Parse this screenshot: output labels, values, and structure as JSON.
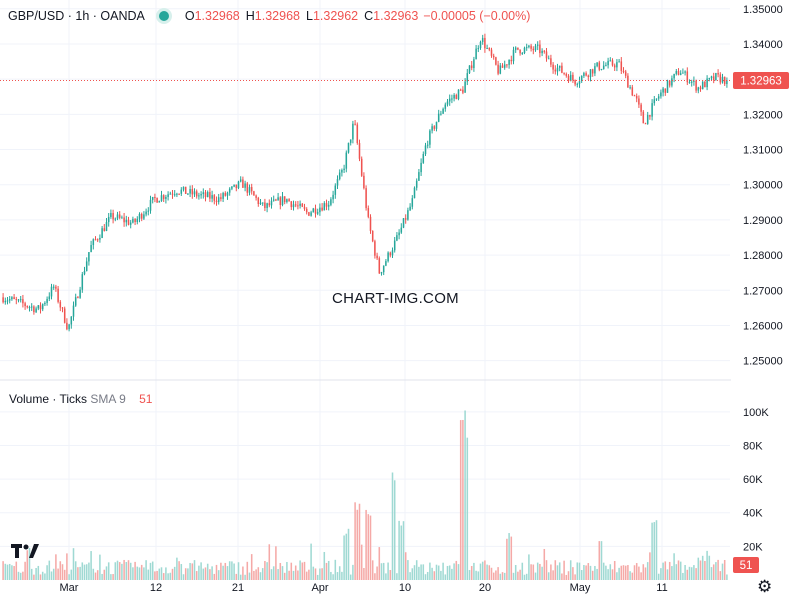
{
  "header": {
    "symbol": "GBP/USD · 1h · OANDA",
    "open_label": "O",
    "open": "1.32968",
    "high_label": "H",
    "high": "1.32968",
    "low_label": "L",
    "low": "1.32962",
    "close_label": "C",
    "close": "1.32963",
    "change": "−0.00005 (−0.00%)"
  },
  "volume_header": {
    "title": "Volume",
    "sep": "·",
    "subtitle": "Ticks",
    "indicator": "SMA 9",
    "value": "51"
  },
  "watermark": "CHART-IMG.COM",
  "last_price_label": "1.32963",
  "last_volume_label": "51",
  "logo_text": "17",
  "settings_icon": "gear-icon",
  "colors": {
    "up": "#26a69a",
    "down": "#ef5350",
    "up_volume": "#9fd9d3",
    "down_volume": "#f5a9a7"
  },
  "chart_data": [
    {
      "type": "candlestick",
      "title": "GBP/USD · 1h · OANDA",
      "ylim": [
        1.2445,
        1.3525
      ],
      "y_ticks": [
        "1.35000",
        "1.34000",
        "1.33000",
        "1.32000",
        "1.31000",
        "1.30000",
        "1.29000",
        "1.28000",
        "1.27000",
        "1.26000",
        "1.25000"
      ],
      "x_ticks": [
        "Mar",
        "12",
        "21",
        "Apr",
        "10",
        "20",
        "May",
        "11"
      ],
      "last_price": 1.32963,
      "path_waypoints": [
        {
          "t": 0,
          "p": 1.268
        },
        {
          "t": 0.05,
          "p": 1.2645
        },
        {
          "t": 0.07,
          "p": 1.271
        },
        {
          "t": 0.09,
          "p": 1.259
        },
        {
          "t": 0.12,
          "p": 1.282
        },
        {
          "t": 0.15,
          "p": 1.291
        },
        {
          "t": 0.18,
          "p": 1.289
        },
        {
          "t": 0.21,
          "p": 1.296
        },
        {
          "t": 0.24,
          "p": 1.2985
        },
        {
          "t": 0.27,
          "p": 1.297
        },
        {
          "t": 0.3,
          "p": 1.296
        },
        {
          "t": 0.33,
          "p": 1.3005
        },
        {
          "t": 0.36,
          "p": 1.2935
        },
        {
          "t": 0.39,
          "p": 1.296
        },
        {
          "t": 0.42,
          "p": 1.292
        },
        {
          "t": 0.45,
          "p": 1.295
        },
        {
          "t": 0.47,
          "p": 1.3045
        },
        {
          "t": 0.485,
          "p": 1.318
        },
        {
          "t": 0.505,
          "p": 1.289
        },
        {
          "t": 0.52,
          "p": 1.275
        },
        {
          "t": 0.545,
          "p": 1.285
        },
        {
          "t": 0.565,
          "p": 1.295
        },
        {
          "t": 0.585,
          "p": 1.312
        },
        {
          "t": 0.61,
          "p": 1.323
        },
        {
          "t": 0.635,
          "p": 1.327
        },
        {
          "t": 0.66,
          "p": 1.342
        },
        {
          "t": 0.685,
          "p": 1.332
        },
        {
          "t": 0.71,
          "p": 1.3385
        },
        {
          "t": 0.74,
          "p": 1.3385
        },
        {
          "t": 0.76,
          "p": 1.334
        },
        {
          "t": 0.79,
          "p": 1.3295
        },
        {
          "t": 0.82,
          "p": 1.3335
        },
        {
          "t": 0.85,
          "p": 1.3345
        },
        {
          "t": 0.875,
          "p": 1.324
        },
        {
          "t": 0.885,
          "p": 1.3175
        },
        {
          "t": 0.905,
          "p": 1.325
        },
        {
          "t": 0.935,
          "p": 1.3325
        },
        {
          "t": 0.96,
          "p": 1.3275
        },
        {
          "t": 0.985,
          "p": 1.3305
        },
        {
          "t": 1.0,
          "p": 1.3296
        }
      ]
    },
    {
      "type": "bar",
      "title": "Volume · Ticks",
      "ylim": [
        0,
        113000
      ],
      "y_ticks": [
        "100K",
        "80K",
        "60K",
        "40K",
        "20K"
      ],
      "sma_period": 9,
      "spikes": [
        {
          "t": 0.475,
          "v": 31000
        },
        {
          "t": 0.49,
          "v": 48000
        },
        {
          "t": 0.505,
          "v": 43000
        },
        {
          "t": 0.54,
          "v": 65000
        },
        {
          "t": 0.55,
          "v": 36000
        },
        {
          "t": 0.635,
          "v": 108000
        },
        {
          "t": 0.64,
          "v": 95000
        },
        {
          "t": 0.7,
          "v": 28000
        },
        {
          "t": 0.825,
          "v": 25000
        },
        {
          "t": 0.9,
          "v": 38000
        }
      ]
    }
  ]
}
